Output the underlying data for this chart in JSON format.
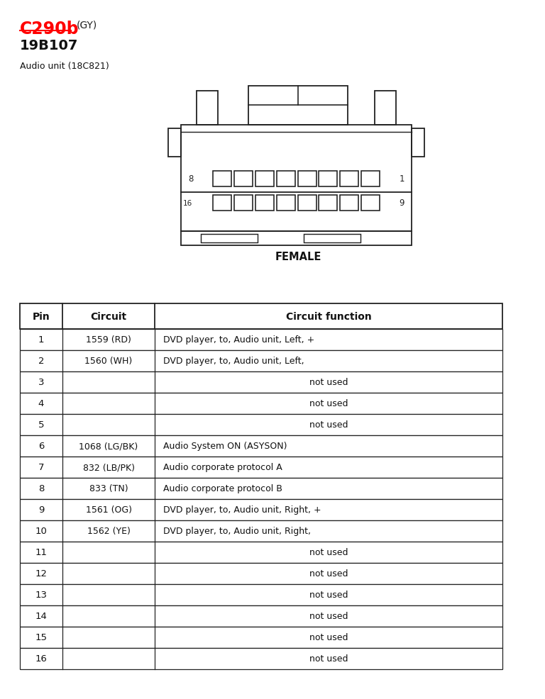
{
  "title_red": "C290b",
  "title_gray": "(GY)",
  "subtitle": "19B107",
  "audio_unit_label": "Audio unit (18C821)",
  "female_label": "FEMALE",
  "bg_color": "#ffffff",
  "line_color": "#222222",
  "table_header": [
    "Pin",
    "Circuit",
    "Circuit function"
  ],
  "table_rows": [
    [
      "1",
      "1559 (RD)",
      "DVD player, to, Audio unit, Left, +"
    ],
    [
      "2",
      "1560 (WH)",
      "DVD player, to, Audio unit, Left,"
    ],
    [
      "3",
      "",
      "not used"
    ],
    [
      "4",
      "",
      "not used"
    ],
    [
      "5",
      "",
      "not used"
    ],
    [
      "6",
      "1068 (LG/BK)",
      "Audio System ON (ASYSON)"
    ],
    [
      "7",
      "832 (LB/PK)",
      "Audio corporate protocol A"
    ],
    [
      "8",
      "833 (TN)",
      "Audio corporate protocol B"
    ],
    [
      "9",
      "1561 (OG)",
      "DVD player, to, Audio unit, Right, +"
    ],
    [
      "10",
      "1562 (YE)",
      "DVD player, to, Audio unit, Right,"
    ],
    [
      "11",
      "",
      "not used"
    ],
    [
      "12",
      "",
      "not used"
    ],
    [
      "13",
      "",
      "not used"
    ],
    [
      "14",
      "",
      "not used"
    ],
    [
      "15",
      "",
      "not used"
    ],
    [
      "16",
      "",
      "not used"
    ]
  ],
  "header_fontsize": 10,
  "cell_fontsize": 9.5,
  "title_fontsize": 17,
  "subtitle_fontsize": 14,
  "small_fontsize": 9
}
